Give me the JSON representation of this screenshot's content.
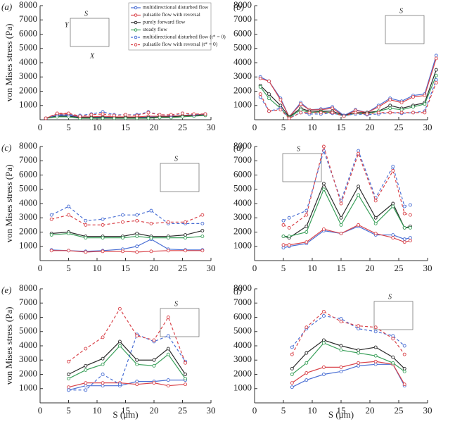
{
  "chart_data": [
    {
      "type": "line",
      "panel": "(a)",
      "ylabel": "von Mises stress (Pa)",
      "inset_labels": [
        "S",
        "Y",
        "X"
      ],
      "x": [
        1,
        3,
        5,
        7,
        9,
        11,
        13,
        15,
        17,
        19,
        21,
        23,
        25,
        27,
        29
      ],
      "xlim": [
        0,
        30
      ],
      "ylim": [
        0,
        8000
      ],
      "xticks": [
        0,
        5,
        10,
        15,
        20,
        25,
        30
      ],
      "yticks": [
        1000,
        2000,
        3000,
        4000,
        5000,
        6000,
        7000,
        8000
      ],
      "series": [
        {
          "name": "multidirectional disturbed flow",
          "color": "#4a6fd4",
          "linestyle": "solid",
          "values": [
            100,
            300,
            300,
            200,
            200,
            200,
            150,
            150,
            150,
            200,
            250,
            200,
            300,
            300,
            350
          ]
        },
        {
          "name": "pulsatile flow with reversal",
          "color": "#d9434a",
          "linestyle": "solid",
          "values": [
            100,
            400,
            400,
            200,
            200,
            250,
            200,
            200,
            200,
            250,
            250,
            250,
            300,
            350,
            400
          ]
        },
        {
          "name": "purely forward flow",
          "color": "#2b2b2b",
          "linestyle": "solid",
          "values": [
            100,
            250,
            250,
            150,
            150,
            150,
            150,
            150,
            150,
            150,
            200,
            200,
            250,
            300,
            350
          ]
        },
        {
          "name": "steady flow",
          "color": "#3aa05a",
          "linestyle": "solid",
          "values": [
            100,
            200,
            200,
            100,
            100,
            100,
            100,
            100,
            100,
            100,
            150,
            150,
            200,
            250,
            300
          ]
        },
        {
          "name": "multidirectional disturbed flow (t* = 0)",
          "color": "#4a6fd4",
          "linestyle": "dashed",
          "values": [
            100,
            350,
            350,
            300,
            400,
            550,
            350,
            350,
            350,
            550,
            350,
            300,
            450,
            350,
            400
          ]
        },
        {
          "name": "pulsatile flow with reversal (t* = 0)",
          "color": "#d9434a",
          "linestyle": "dashed",
          "values": [
            100,
            450,
            450,
            250,
            350,
            400,
            300,
            350,
            300,
            500,
            350,
            350,
            450,
            400,
            400
          ]
        }
      ]
    },
    {
      "type": "line",
      "panel": "(b)",
      "inset_labels": [
        "S"
      ],
      "x": [
        1,
        2.5,
        4.5,
        6,
        8,
        9.5,
        11.5,
        13.5,
        15.5,
        17.5,
        19.5,
        21.5,
        23.5,
        25.5,
        27.5,
        29.5,
        31.5
      ],
      "xlim": [
        0,
        30
      ],
      "ylim": [
        0,
        8000
      ],
      "xticks": [
        0,
        5,
        10,
        15,
        20,
        25,
        30
      ],
      "yticks": [
        1000,
        2000,
        3000,
        4000,
        5000,
        6000,
        7000,
        8000
      ],
      "series": [
        {
          "color": "#4a6fd4",
          "linestyle": "solid",
          "values": [
            3000,
            2700,
            1500,
            200,
            1200,
            700,
            750,
            900,
            300,
            700,
            500,
            1000,
            1500,
            1300,
            1700,
            1800,
            4500
          ]
        },
        {
          "color": "#d9434a",
          "linestyle": "solid",
          "values": [
            2900,
            2700,
            1400,
            200,
            1100,
            700,
            700,
            800,
            250,
            650,
            500,
            900,
            1400,
            1200,
            1600,
            1700,
            4300
          ]
        },
        {
          "color": "#2b2b2b",
          "linestyle": "solid",
          "values": [
            2400,
            1800,
            1000,
            200,
            800,
            600,
            600,
            600,
            300,
            500,
            500,
            600,
            1000,
            800,
            1000,
            1200,
            3500
          ]
        },
        {
          "color": "#3aa05a",
          "linestyle": "solid",
          "values": [
            2300,
            1500,
            800,
            150,
            700,
            500,
            550,
            500,
            250,
            450,
            400,
            600,
            800,
            700,
            900,
            1100,
            3100
          ]
        },
        {
          "color": "#4a6fd4",
          "linestyle": "dashed",
          "values": [
            1600,
            600,
            800,
            100,
            500,
            400,
            400,
            450,
            300,
            400,
            350,
            400,
            500,
            450,
            500,
            600,
            2800
          ]
        },
        {
          "color": "#d9434a",
          "linestyle": "dashed",
          "values": [
            1800,
            600,
            700,
            100,
            500,
            500,
            500,
            500,
            250,
            500,
            400,
            500,
            500,
            500,
            500,
            500,
            2600
          ]
        }
      ]
    },
    {
      "type": "line",
      "panel": "(c)",
      "ylabel": "von Mises stress (Pa)",
      "inset_labels": [
        "S"
      ],
      "x": [
        2,
        5,
        8,
        11,
        14.5,
        17,
        19.5,
        22.5,
        25.5,
        28.5
      ],
      "xlim": [
        0,
        30
      ],
      "ylim": [
        0,
        8000
      ],
      "xticks": [
        0,
        5,
        10,
        15,
        20,
        25,
        30
      ],
      "yticks": [
        1000,
        2000,
        3000,
        4000,
        5000,
        6000,
        7000,
        8000
      ],
      "series": [
        {
          "color": "#4a6fd4",
          "linestyle": "solid",
          "values": [
            750,
            700,
            650,
            700,
            800,
            1000,
            1500,
            800,
            750,
            750
          ]
        },
        {
          "color": "#d9434a",
          "linestyle": "solid",
          "values": [
            700,
            700,
            600,
            650,
            650,
            600,
            650,
            700,
            700,
            700
          ]
        },
        {
          "color": "#2b2b2b",
          "linestyle": "solid",
          "values": [
            1900,
            2000,
            1700,
            1700,
            1700,
            1900,
            1700,
            1700,
            1800,
            2100
          ]
        },
        {
          "color": "#3aa05a",
          "linestyle": "solid",
          "values": [
            1800,
            1900,
            1600,
            1600,
            1600,
            1700,
            1600,
            1600,
            1600,
            1700
          ]
        },
        {
          "color": "#4a6fd4",
          "linestyle": "dashed",
          "values": [
            3200,
            3800,
            2800,
            2900,
            3200,
            3200,
            3500,
            2600,
            2600,
            2600
          ]
        },
        {
          "color": "#d9434a",
          "linestyle": "dashed",
          "values": [
            2900,
            3200,
            2500,
            2500,
            2700,
            2800,
            2600,
            2700,
            2700,
            3200
          ]
        }
      ]
    },
    {
      "type": "line",
      "panel": "(d)",
      "inset_labels": [
        "S"
      ],
      "x": [
        5,
        6,
        9,
        12,
        15,
        18,
        21,
        24,
        26,
        27
      ],
      "xlim": [
        0,
        30
      ],
      "ylim": [
        0,
        8000
      ],
      "xticks": [
        0,
        5,
        10,
        15,
        20,
        25,
        30
      ],
      "yticks": [
        1000,
        2000,
        3000,
        4000,
        5000,
        6000,
        7000,
        8000
      ],
      "series": [
        {
          "color": "#4a6fd4",
          "linestyle": "solid",
          "values": [
            900,
            1000,
            1200,
            2100,
            1900,
            2400,
            1800,
            1800,
            1500,
            1600
          ]
        },
        {
          "color": "#d9434a",
          "linestyle": "solid",
          "values": [
            1100,
            1100,
            1300,
            2200,
            1900,
            2500,
            1900,
            1600,
            1300,
            1400
          ]
        },
        {
          "color": "#2b2b2b",
          "linestyle": "solid",
          "values": [
            1700,
            1600,
            2400,
            5400,
            3000,
            5200,
            3000,
            4000,
            2300,
            2400
          ]
        },
        {
          "color": "#3aa05a",
          "linestyle": "solid",
          "values": [
            1700,
            1700,
            2000,
            5000,
            2500,
            4600,
            2600,
            3800,
            2300,
            2300
          ]
        },
        {
          "color": "#4a6fd4",
          "linestyle": "dashed",
          "values": [
            2800,
            3000,
            3500,
            7700,
            4200,
            7700,
            4400,
            6600,
            3800,
            3900
          ]
        },
        {
          "color": "#d9434a",
          "linestyle": "dashed",
          "values": [
            2500,
            2300,
            3200,
            8000,
            4000,
            7500,
            4200,
            6300,
            3300,
            3200
          ]
        }
      ]
    },
    {
      "type": "line",
      "panel": "(e)",
      "ylabel": "von Mises stress (Pa)",
      "xlabel": "S (μm)",
      "inset_labels": [
        "S"
      ],
      "x": [
        5,
        8,
        11,
        14,
        17,
        20,
        22.5,
        25.5
      ],
      "xlim": [
        0,
        30
      ],
      "ylim": [
        0,
        8000
      ],
      "xticks": [
        0,
        5,
        10,
        15,
        20,
        25,
        30
      ],
      "yticks": [
        1000,
        2000,
        3000,
        4000,
        5000,
        6000,
        7000,
        8000
      ],
      "series": [
        {
          "color": "#4a6fd4",
          "linestyle": "solid",
          "values": [
            900,
            1200,
            1200,
            1200,
            1500,
            1500,
            1600,
            1600
          ]
        },
        {
          "color": "#d9434a",
          "linestyle": "solid",
          "values": [
            1100,
            1400,
            1400,
            1400,
            1300,
            1400,
            1200,
            1300
          ]
        },
        {
          "color": "#2b2b2b",
          "linestyle": "solid",
          "values": [
            2000,
            2600,
            3100,
            4300,
            3000,
            3000,
            3800,
            2000
          ]
        },
        {
          "color": "#3aa05a",
          "linestyle": "solid",
          "values": [
            1700,
            2300,
            2700,
            4000,
            2700,
            2600,
            3400,
            1700
          ]
        },
        {
          "color": "#4a6fd4",
          "linestyle": "dashed",
          "values": [
            900,
            900,
            2000,
            1300,
            4800,
            4300,
            4700,
            2900
          ]
        },
        {
          "color": "#d9434a",
          "linestyle": "dashed",
          "values": [
            2900,
            3800,
            4600,
            6600,
            4700,
            4400,
            6000,
            2800
          ]
        }
      ]
    },
    {
      "type": "line",
      "panel": "(f)",
      "xlabel": "S (μm)",
      "inset_labels": [
        "S"
      ],
      "x": [
        6.5,
        9,
        12,
        15,
        18,
        21,
        24,
        26
      ],
      "xlim": [
        0,
        30
      ],
      "ylim": [
        0,
        8000
      ],
      "xticks": [
        0,
        5,
        10,
        15,
        20,
        25,
        30
      ],
      "yticks": [
        1000,
        2000,
        3000,
        4000,
        5000,
        6000,
        7000,
        8000
      ],
      "series": [
        {
          "color": "#4a6fd4",
          "linestyle": "solid",
          "values": [
            1100,
            1600,
            2000,
            2200,
            2600,
            2700,
            2700,
            1200
          ]
        },
        {
          "color": "#d9434a",
          "linestyle": "solid",
          "values": [
            1400,
            2100,
            2500,
            2500,
            2800,
            2900,
            2700,
            1300
          ]
        },
        {
          "color": "#2b2b2b",
          "linestyle": "solid",
          "values": [
            2400,
            3500,
            4400,
            4000,
            3700,
            3900,
            3200,
            2400
          ]
        },
        {
          "color": "#3aa05a",
          "linestyle": "solid",
          "values": [
            2000,
            2800,
            4200,
            3700,
            3500,
            3300,
            2800,
            2200
          ]
        },
        {
          "color": "#4a6fd4",
          "linestyle": "dashed",
          "values": [
            3900,
            5200,
            6100,
            5900,
            5200,
            5000,
            4700,
            4000
          ]
        },
        {
          "color": "#d9434a",
          "linestyle": "dashed",
          "values": [
            3400,
            5300,
            6400,
            5700,
            5400,
            5300,
            4500,
            3400
          ]
        }
      ]
    }
  ]
}
